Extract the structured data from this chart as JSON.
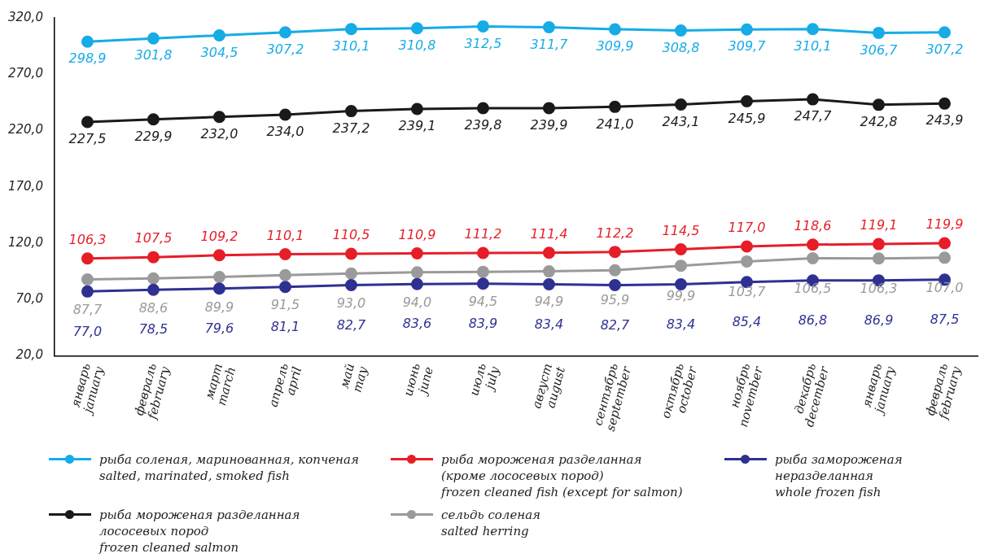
{
  "chart_data": {
    "type": "line",
    "categories": [
      "январь\njanuary",
      "февраль\nfebruary",
      "март\nmarch",
      "апрель\napril",
      "май\nmay",
      "июнь\njune",
      "июль\njuly",
      "август\naugust",
      "сентябрь\nseptember",
      "октябрь\noctober",
      "ноябрь\nnovember",
      "декабрь\ndecember",
      "январь\njanuary",
      "февраль\nfebruary"
    ],
    "ylim": [
      20,
      320
    ],
    "yticks": [
      {
        "value": 20,
        "label": "20,0"
      },
      {
        "value": 70,
        "label": "70,0"
      },
      {
        "value": 120,
        "label": "120,0"
      },
      {
        "value": 170,
        "label": "170,0"
      },
      {
        "value": 220,
        "label": "220,0"
      },
      {
        "value": 270,
        "label": "270,0"
      },
      {
        "value": 320,
        "label": "320,0"
      }
    ],
    "grid": false,
    "legend": "bottom",
    "marker": "circle",
    "line_style": "solid",
    "series": [
      {
        "name": "рыба соленая, маринованная, копченая\nsalted, marinated, smoked fish",
        "color": "#16ace6",
        "values": [
          298.9,
          301.8,
          304.5,
          307.2,
          310.1,
          310.8,
          312.5,
          311.7,
          309.9,
          308.8,
          309.7,
          310.1,
          306.7,
          307.2
        ],
        "value_labels": [
          "298,9",
          "301,8",
          "304,5",
          "307,2",
          "310,1",
          "310,8",
          "312,5",
          "311,7",
          "309,9",
          "308,8",
          "309,7",
          "310,1",
          "306,7",
          "307,2"
        ]
      },
      {
        "name": "рыба мороженая разделанная\n(кроме лососевых пород)\nfrozen cleaned fish (except for salmon)",
        "color": "#e61e28",
        "values": [
          106.3,
          107.5,
          109.2,
          110.1,
          110.5,
          110.9,
          111.2,
          111.4,
          112.2,
          114.5,
          117.0,
          118.6,
          119.1,
          119.9
        ],
        "value_labels": [
          "106,3",
          "107,5",
          "109,2",
          "110,1",
          "110,5",
          "110,9",
          "111,2",
          "111,4",
          "112,2",
          "114,5",
          "117,0",
          "118,6",
          "119,1",
          "119,9"
        ]
      },
      {
        "name": "рыба замороженая неразделанная\nwhole frozen fish",
        "color": "#2e3192",
        "values": [
          77.0,
          78.5,
          79.6,
          81.1,
          82.7,
          83.6,
          83.9,
          83.4,
          82.7,
          83.4,
          85.4,
          86.8,
          86.9,
          87.5
        ],
        "value_labels": [
          "77,0",
          "78,5",
          "79,6",
          "81,1",
          "82,7",
          "83,6",
          "83,9",
          "83,4",
          "82,7",
          "83,4",
          "85,4",
          "86,8",
          "86,9",
          "87,5"
        ]
      },
      {
        "name": "рыба мороженая разделанная\nлососевых пород\nfrozen cleaned salmon",
        "color": "#1a1a1a",
        "values": [
          227.5,
          229.9,
          232.0,
          234.0,
          237.2,
          239.1,
          239.8,
          239.9,
          241.0,
          243.1,
          245.9,
          247.7,
          242.8,
          243.9
        ],
        "value_labels": [
          "227,5",
          "229,9",
          "232,0",
          "234,0",
          "237,2",
          "239,1",
          "239,8",
          "239,9",
          "241,0",
          "243,1",
          "245,9",
          "247,7",
          "242,8",
          "243,9"
        ]
      },
      {
        "name": "сельдь соленая\nsalted herring",
        "color": "#9a9a9a",
        "values": [
          87.7,
          88.6,
          89.9,
          91.5,
          93.0,
          94.0,
          94.5,
          94.9,
          95.9,
          99.9,
          103.7,
          106.5,
          106.3,
          107.0
        ],
        "value_labels": [
          "87,7",
          "88,6",
          "89,9",
          "91,5",
          "93,0",
          "94,0",
          "94,5",
          "94,9",
          "95,9",
          "99,9",
          "103,7",
          "106,5",
          "106,3",
          "107,0"
        ]
      }
    ]
  }
}
